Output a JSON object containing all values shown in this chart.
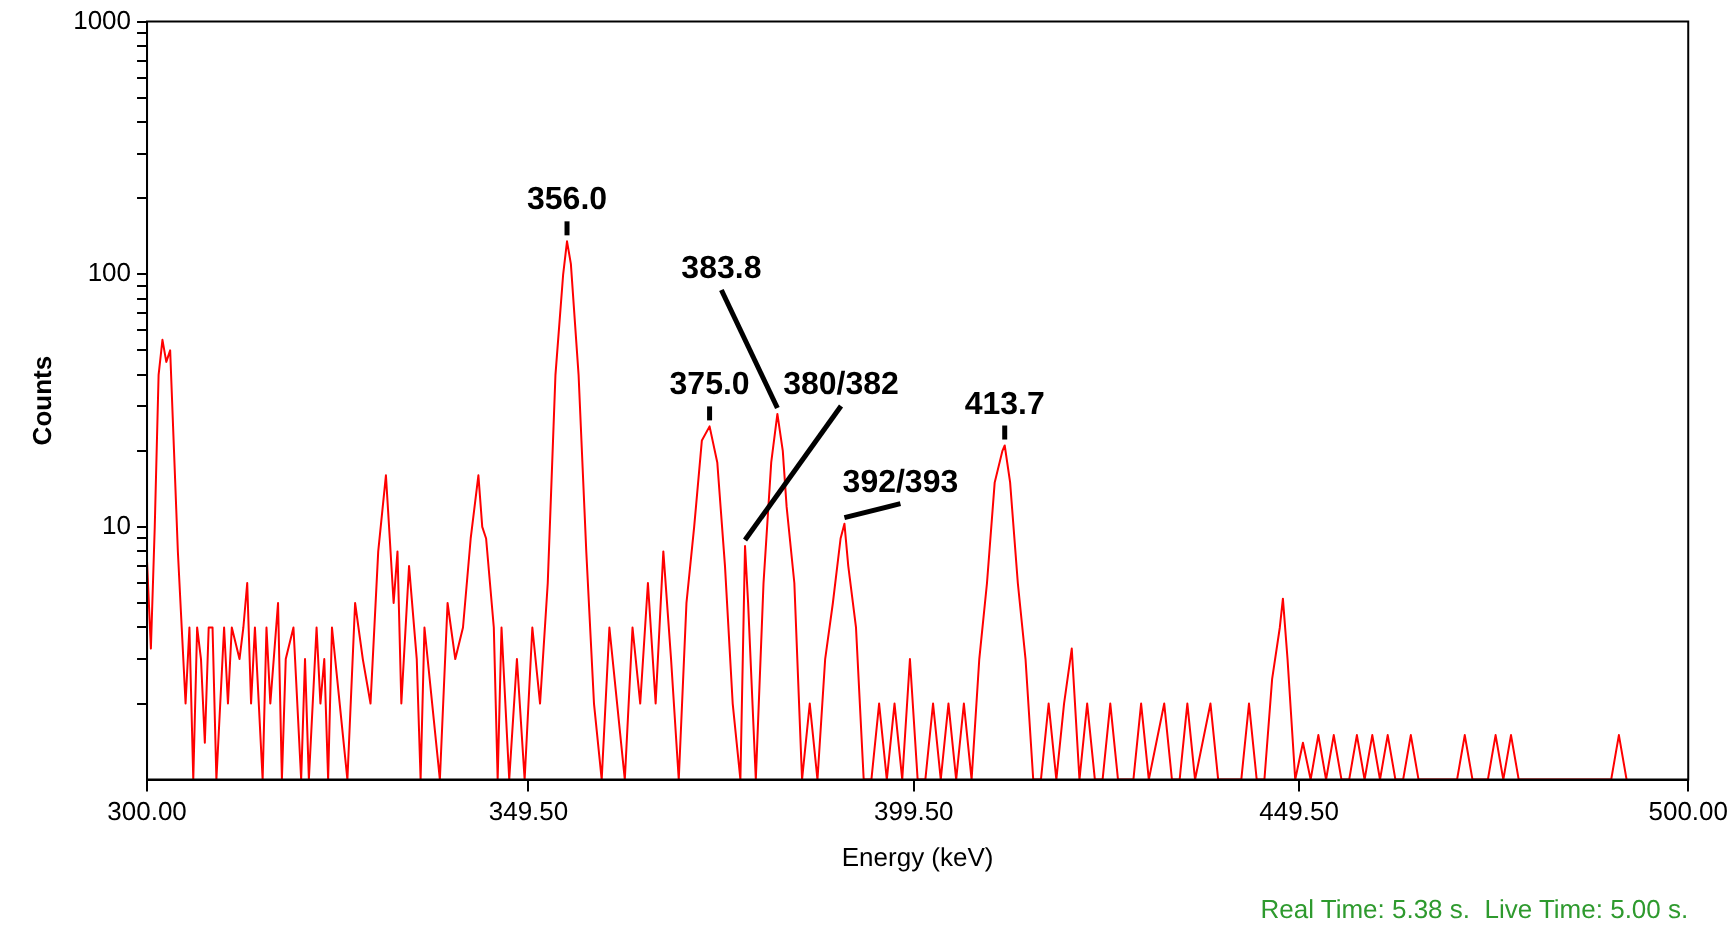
{
  "chart_data": {
    "type": "line",
    "xlabel": "Energy (keV)",
    "ylabel": "Counts",
    "log": "y",
    "grid": false,
    "legend": false,
    "marker": "none",
    "xlim": [
      300,
      500
    ],
    "xticks": [
      {
        "value": 300,
        "label": "300.00"
      },
      {
        "value": 349.5,
        "label": "349.50"
      },
      {
        "value": 399.5,
        "label": "399.50"
      },
      {
        "value": 449.5,
        "label": "449.50"
      },
      {
        "value": 500,
        "label": "500.00"
      }
    ],
    "ylim": [
      1,
      1000
    ],
    "yticks": [
      {
        "value": 2,
        "label": null
      },
      {
        "value": 3,
        "label": null
      },
      {
        "value": 4,
        "label": null
      },
      {
        "value": 5,
        "label": null
      },
      {
        "value": 6,
        "label": null
      },
      {
        "value": 7,
        "label": null
      },
      {
        "value": 8,
        "label": null
      },
      {
        "value": 9,
        "label": null
      },
      10,
      {
        "value": 20,
        "label": null
      },
      {
        "value": 30,
        "label": null
      },
      {
        "value": 40,
        "label": null
      },
      {
        "value": 50,
        "label": null
      },
      {
        "value": 60,
        "label": null
      },
      {
        "value": 70,
        "label": null
      },
      {
        "value": 80,
        "label": null
      },
      {
        "value": 90,
        "label": null
      },
      100,
      {
        "value": 200,
        "label": null
      },
      {
        "value": 300,
        "label": null
      },
      {
        "value": 400,
        "label": null
      },
      {
        "value": 500,
        "label": null
      },
      {
        "value": 600,
        "label": null
      },
      {
        "value": 700,
        "label": null
      },
      {
        "value": 800,
        "label": null
      },
      {
        "value": 900,
        "label": null
      },
      1000
    ],
    "x": [
      300,
      300.5,
      301,
      301.5,
      302,
      302.5,
      303,
      303.5,
      304,
      304.5,
      305,
      305.5,
      306,
      306.5,
      307,
      307.5,
      308,
      308.5,
      309,
      310,
      310.5,
      311,
      312,
      312.5,
      313,
      313.5,
      314,
      315,
      315.5,
      316,
      317,
      317.5,
      318,
      319,
      320,
      320.5,
      321,
      322,
      322.5,
      323,
      323.5,
      324,
      325,
      326,
      327,
      328,
      329,
      330,
      331,
      331.5,
      332,
      332.5,
      333,
      334,
      335,
      335.5,
      336,
      337,
      338,
      339,
      340,
      341,
      342,
      343,
      343.5,
      344,
      345,
      345.5,
      346,
      347,
      348,
      349,
      350,
      351,
      352,
      353,
      354,
      354.5,
      355,
      356,
      357,
      358,
      359,
      360,
      361,
      362,
      363,
      364,
      365,
      366,
      367,
      368,
      369,
      370,
      371,
      372,
      373,
      374,
      375,
      376,
      377,
      377.6,
      378,
      379,
      380,
      381,
      381.8,
      382.5,
      383,
      384,
      385,
      386,
      387,
      388,
      389,
      390,
      390.5,
      391,
      392,
      393,
      394,
      395,
      396,
      397,
      398,
      399,
      400,
      401,
      402,
      403,
      404,
      405,
      406,
      407,
      408,
      409,
      410,
      411,
      411.3,
      412,
      413,
      414,
      415,
      416,
      417,
      418,
      419,
      420,
      421,
      422,
      423,
      424,
      425,
      426,
      428,
      429,
      430,
      432,
      433,
      434,
      435,
      436,
      438,
      439,
      441,
      442,
      443,
      444,
      445,
      446,
      447,
      447.4,
      448,
      449,
      450,
      451,
      452,
      453,
      454,
      455,
      456,
      457,
      458,
      459,
      460,
      461,
      462,
      463,
      464,
      465,
      470,
      471,
      472,
      474,
      475,
      476,
      477,
      478,
      490,
      491,
      492
    ],
    "series": [
      {
        "color": "#ff0000",
        "line_style": "solid",
        "values": [
          7.3,
          3.3,
          10,
          40,
          55,
          45,
          50,
          20,
          8,
          4,
          2,
          4,
          1,
          4,
          3,
          1.4,
          4,
          4,
          1,
          4,
          2,
          4,
          3,
          4,
          6,
          2,
          4,
          1,
          4,
          2,
          5,
          1,
          3,
          4,
          1,
          3,
          1,
          4,
          2,
          3,
          1,
          4,
          2,
          1,
          5,
          3,
          2,
          8,
          16,
          9,
          5,
          8,
          2,
          7,
          3,
          1,
          4,
          2,
          1,
          5,
          3,
          4,
          9,
          16,
          10,
          9,
          4,
          1,
          4,
          1,
          3,
          1,
          4,
          2,
          6,
          40,
          100,
          135,
          110,
          40,
          8,
          2,
          1,
          4,
          2,
          1,
          4,
          2,
          6,
          2,
          8,
          3,
          1,
          5,
          10,
          22,
          25,
          18,
          7,
          2,
          1,
          8.4,
          5,
          1,
          6,
          18,
          28,
          20,
          12,
          6,
          1,
          2,
          1,
          3,
          5,
          9,
          10.3,
          7,
          4,
          1,
          1,
          2,
          1,
          2,
          1,
          3,
          1,
          1,
          2,
          1,
          2,
          1,
          2,
          1,
          3,
          6,
          15,
          20,
          21,
          15,
          6,
          3,
          1,
          1,
          2,
          1,
          2,
          3.3,
          1,
          2,
          1,
          1,
          2,
          1,
          1,
          2,
          1,
          2,
          1,
          1,
          2,
          1,
          2,
          1,
          1,
          1,
          2,
          1,
          1,
          2.5,
          4,
          5.2,
          3,
          1,
          1.4,
          1,
          1.5,
          1,
          1.5,
          1,
          1,
          1.5,
          1,
          1.5,
          1,
          1.5,
          1,
          1,
          1.5,
          1,
          1,
          1.5,
          1,
          1,
          1.5,
          1,
          1.5,
          1,
          1,
          1.5,
          1
        ]
      }
    ],
    "annotations": [
      {
        "text": "356.0",
        "x": 354.5,
        "y": 135
      },
      {
        "text": "375.0",
        "x": 373,
        "y": 25
      },
      {
        "text": "380/382",
        "x": 377.6,
        "y": 8.4
      },
      {
        "text": "383.8",
        "x": 381.8,
        "y": 28
      },
      {
        "text": "392/393",
        "x": 390.5,
        "y": 10.3
      },
      {
        "text": "413.7",
        "x": 411.3,
        "y": 21
      },
      "Real Time: 5.38 s.  Live Time: 5.00 s."
    ]
  }
}
